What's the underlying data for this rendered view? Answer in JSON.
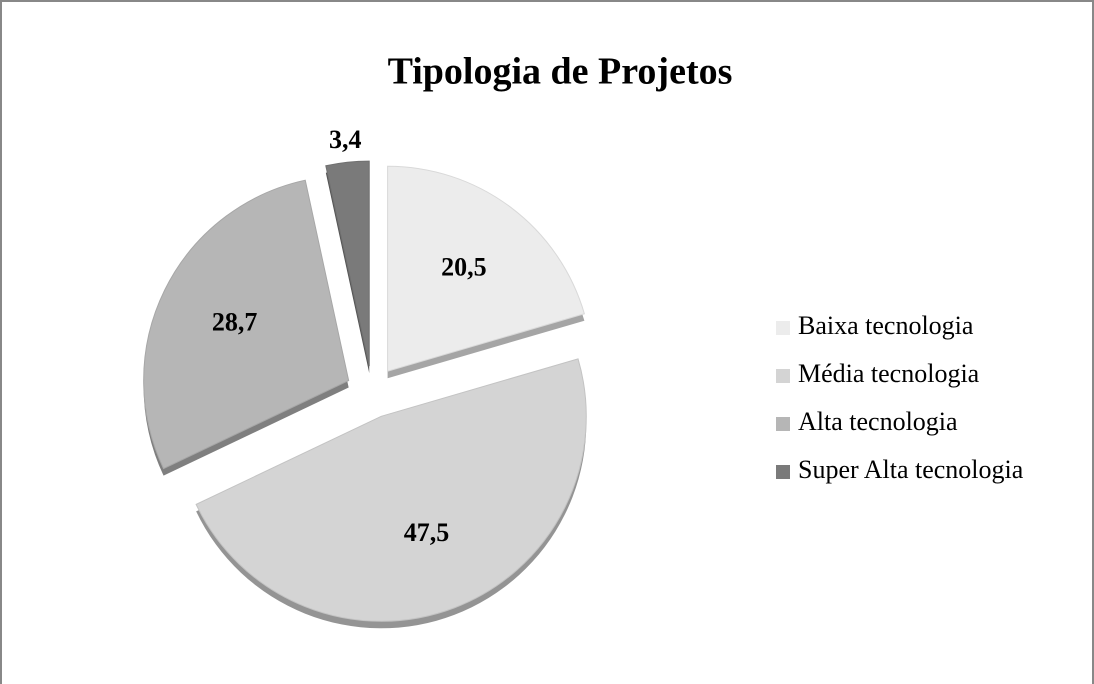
{
  "chart_data": {
    "type": "pie",
    "title": "Tipologia de Projetos",
    "categories": [
      "Baixa tecnologia",
      "Média tecnologia",
      "Alta tecnologia",
      "Super Alta tecnologia"
    ],
    "values": [
      20.5,
      47.5,
      28.7,
      3.4
    ],
    "value_labels": [
      "20,5",
      "47,5",
      "28,7",
      "3,4"
    ],
    "colors": [
      "#ececec",
      "#d4d4d4",
      "#b6b6b6",
      "#7a7a7a"
    ],
    "legend": "right"
  }
}
